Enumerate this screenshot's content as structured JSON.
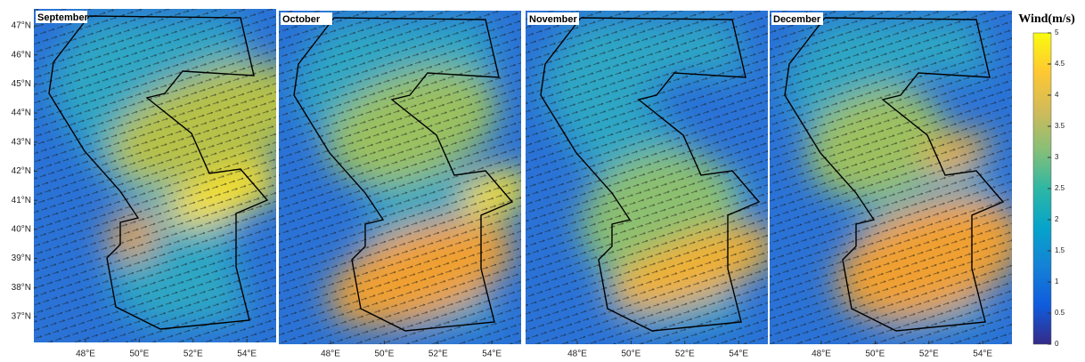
{
  "panels": [
    {
      "title": "September"
    },
    {
      "title": "October"
    },
    {
      "title": "November"
    },
    {
      "title": "December"
    }
  ],
  "lat_ticks": [
    {
      "value": 47,
      "label": "47°N"
    },
    {
      "value": 46,
      "label": "46°N"
    },
    {
      "value": 45,
      "label": "45°N"
    },
    {
      "value": 44,
      "label": "44°N"
    },
    {
      "value": 43,
      "label": "43°N"
    },
    {
      "value": 42,
      "label": "42°N"
    },
    {
      "value": 41,
      "label": "41°N"
    },
    {
      "value": 40,
      "label": "40°N"
    },
    {
      "value": 39,
      "label": "39°N"
    },
    {
      "value": 38,
      "label": "38°N"
    },
    {
      "value": 37,
      "label": "37°N"
    }
  ],
  "lon_ticks": [
    {
      "value": 48,
      "label": "48°E"
    },
    {
      "value": 50,
      "label": "50°E"
    },
    {
      "value": 52,
      "label": "52°E"
    },
    {
      "value": 54,
      "label": "54°E"
    }
  ],
  "colorbar": {
    "title": "Wind(m/s)",
    "lim": [
      0,
      5
    ],
    "ticks": [
      0,
      0.5,
      1,
      1.5,
      2,
      2.5,
      3,
      3.5,
      4,
      4.5,
      5
    ],
    "colormap": [
      "#352a87",
      "#0f5cdd",
      "#1481d6",
      "#06a4ca",
      "#2eb7a4",
      "#87bf77",
      "#d1bb59",
      "#fec832",
      "#f9fb0e"
    ]
  }
}
